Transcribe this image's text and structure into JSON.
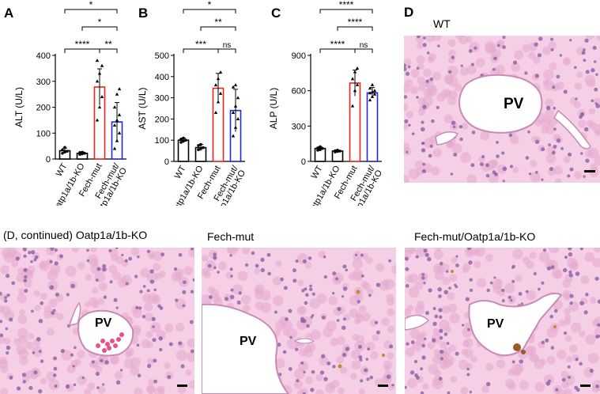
{
  "panels": {
    "A": "A",
    "B": "B",
    "C": "C",
    "D": "D"
  },
  "chart_data": [
    {
      "type": "bar",
      "panel": "A",
      "ylabel": "ALT (U/L)",
      "ylim": [
        0,
        400
      ],
      "yticks": [
        0,
        100,
        200,
        300,
        400
      ],
      "categories": [
        "WT",
        "Oatp1a/1b-KO",
        "Fech-mut",
        "Fech-mut/\nOatp1a/1b-KO"
      ],
      "values": [
        32,
        22,
        278,
        143
      ],
      "errors": [
        10,
        5,
        70,
        75
      ],
      "colors": [
        "#000000",
        "#000000",
        "#e8251f",
        "#1f2bd6"
      ],
      "points": [
        [
          22,
          27,
          30,
          35,
          45
        ],
        [
          18,
          20,
          22,
          25,
          26
        ],
        [
          150,
          200,
          240,
          300,
          330,
          360,
          380
        ],
        [
          40,
          70,
          100,
          130,
          150,
          170,
          200,
          250,
          270
        ]
      ],
      "markers": [
        "circle",
        "circle",
        "triangle",
        "triangle"
      ],
      "significance": [
        {
          "a": 0,
          "b": 3,
          "label": "*"
        },
        {
          "a": 1,
          "b": 3,
          "label": "*"
        },
        {
          "a": 0,
          "b": 2,
          "label": "****"
        },
        {
          "a": 2,
          "b": 3,
          "label": "**"
        }
      ]
    },
    {
      "type": "bar",
      "panel": "B",
      "ylabel": "AST (U/L)",
      "ylim": [
        0,
        500
      ],
      "yticks": [
        0,
        100,
        200,
        300,
        400,
        500
      ],
      "categories": [
        "WT",
        "Oatp1a/1b-KO",
        "Fech-mut",
        "Fech-mut/\nOatp1a/1b-KO"
      ],
      "values": [
        100,
        65,
        345,
        240
      ],
      "errors": [
        10,
        15,
        70,
        100
      ],
      "colors": [
        "#000000",
        "#000000",
        "#e8251f",
        "#1f2bd6"
      ],
      "points": [
        [
          90,
          95,
          100,
          105,
          110
        ],
        [
          55,
          60,
          65,
          75,
          80
        ],
        [
          230,
          280,
          320,
          360,
          390,
          420
        ],
        [
          120,
          160,
          200,
          230,
          260,
          300,
          350,
          360
        ]
      ],
      "markers": [
        "circle",
        "circle",
        "triangle",
        "triangle"
      ],
      "significance": [
        {
          "a": 0,
          "b": 3,
          "label": "*"
        },
        {
          "a": 1,
          "b": 3,
          "label": "**"
        },
        {
          "a": 0,
          "b": 2,
          "label": "***"
        },
        {
          "a": 2,
          "b": 3,
          "label": "ns"
        }
      ]
    },
    {
      "type": "bar",
      "panel": "C",
      "ylabel": "ALP (U/L)",
      "ylim": [
        0,
        900
      ],
      "yticks": [
        0,
        300,
        600,
        900
      ],
      "categories": [
        "WT",
        "Oatp1a/1b-KO",
        "Fech-mut",
        "Fech-mut/\nOatp1a/1b-KO"
      ],
      "values": [
        110,
        88,
        665,
        582
      ],
      "errors": [
        12,
        6,
        110,
        45
      ],
      "colors": [
        "#000000",
        "#000000",
        "#e8251f",
        "#1f2bd6"
      ],
      "points": [
        [
          95,
          100,
          110,
          115,
          125
        ],
        [
          80,
          85,
          88,
          90,
          95
        ],
        [
          470,
          600,
          650,
          700,
          760,
          790
        ],
        [
          520,
          550,
          570,
          580,
          590,
          600,
          620,
          650
        ]
      ],
      "markers": [
        "circle",
        "circle",
        "triangle",
        "triangle"
      ],
      "significance": [
        {
          "a": 0,
          "b": 3,
          "label": "****"
        },
        {
          "a": 1,
          "b": 3,
          "label": "****"
        },
        {
          "a": 0,
          "b": 2,
          "label": "****"
        },
        {
          "a": 2,
          "b": 3,
          "label": "ns"
        }
      ]
    }
  ],
  "histology": [
    {
      "id": "wt",
      "label": "WT",
      "vessel": "PV"
    },
    {
      "id": "oatp-ko",
      "label": "(D, continued) Oatp1a/1b-KO",
      "vessel": "PV"
    },
    {
      "id": "fech-mut",
      "label": "Fech-mut",
      "vessel": "PV"
    },
    {
      "id": "fech-oatp-ko",
      "label": "Fech-mut/Oatp1a/1b-KO",
      "vessel": "PV"
    }
  ],
  "colors": {
    "tissue": "#f4cfe6",
    "cell": "#e6a9cc",
    "nucleus": "#8a5fa7",
    "vessel": "#ffffff",
    "rbc": "#e8508a"
  }
}
